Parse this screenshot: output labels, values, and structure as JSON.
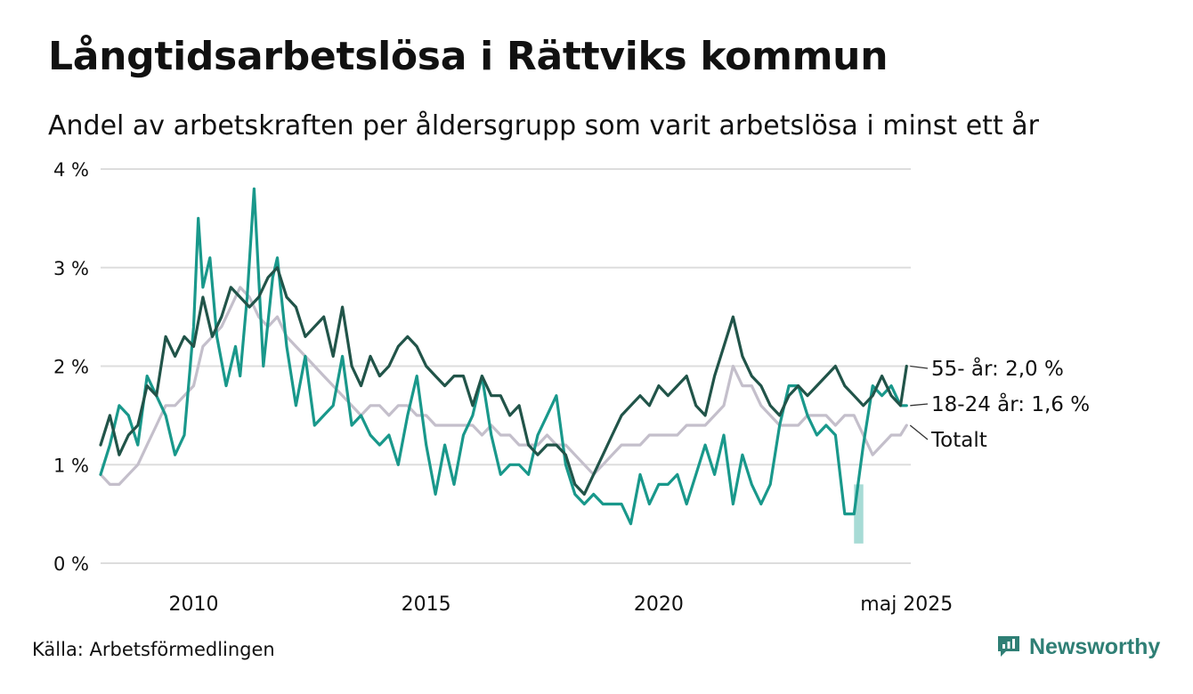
{
  "header": {
    "title": "Långtidsarbetslösa i Rättviks kommun",
    "subtitle": "Andel av arbetskraften per åldersgrupp som varit arbetslösa i minst ett år"
  },
  "footer": {
    "source": "Källa: Arbetsförmedlingen",
    "brand": "Newsworthy",
    "brand_color": "#2f7f75"
  },
  "chart_data": {
    "type": "line",
    "xlim": [
      2008.0,
      2025.42
    ],
    "ylim": [
      0,
      4
    ],
    "y_ticks": [
      {
        "value": 0,
        "label": "0 %"
      },
      {
        "value": 1,
        "label": "1 %"
      },
      {
        "value": 2,
        "label": "2 %"
      },
      {
        "value": 3,
        "label": "3 %"
      },
      {
        "value": 4,
        "label": "4 %"
      }
    ],
    "x_ticks": [
      {
        "value": 2010,
        "label": "2010"
      },
      {
        "value": 2015,
        "label": "2015"
      },
      {
        "value": 2020,
        "label": "2020"
      },
      {
        "value": 2025.33,
        "label": "maj 2025"
      }
    ],
    "grid": true,
    "legend": "end-labels",
    "series": [
      {
        "name": "Totalt",
        "end_label": "Totalt",
        "color": "#c4bfcb",
        "x": [
          2008.0,
          2008.2,
          2008.4,
          2008.6,
          2008.8,
          2009.0,
          2009.2,
          2009.4,
          2009.6,
          2009.8,
          2010.0,
          2010.2,
          2010.4,
          2010.6,
          2010.8,
          2011.0,
          2011.2,
          2011.4,
          2011.6,
          2011.8,
          2012.0,
          2012.2,
          2012.4,
          2012.6,
          2012.8,
          2013.0,
          2013.2,
          2013.4,
          2013.6,
          2013.8,
          2014.0,
          2014.2,
          2014.4,
          2014.6,
          2014.8,
          2015.0,
          2015.2,
          2015.4,
          2015.6,
          2015.8,
          2016.0,
          2016.2,
          2016.4,
          2016.6,
          2016.8,
          2017.0,
          2017.2,
          2017.4,
          2017.6,
          2017.8,
          2018.0,
          2018.2,
          2018.4,
          2018.6,
          2018.8,
          2019.0,
          2019.2,
          2019.4,
          2019.6,
          2019.8,
          2020.0,
          2020.2,
          2020.4,
          2020.6,
          2020.8,
          2021.0,
          2021.2,
          2021.4,
          2021.6,
          2021.8,
          2022.0,
          2022.2,
          2022.4,
          2022.6,
          2022.8,
          2023.0,
          2023.2,
          2023.4,
          2023.6,
          2023.8,
          2024.0,
          2024.2,
          2024.4,
          2024.6,
          2024.8,
          2025.0,
          2025.2,
          2025.33
        ],
        "y": [
          0.9,
          0.8,
          0.8,
          0.9,
          1.0,
          1.2,
          1.4,
          1.6,
          1.6,
          1.7,
          1.8,
          2.2,
          2.3,
          2.4,
          2.6,
          2.8,
          2.7,
          2.5,
          2.4,
          2.5,
          2.3,
          2.2,
          2.1,
          2.0,
          1.9,
          1.8,
          1.7,
          1.6,
          1.5,
          1.6,
          1.6,
          1.5,
          1.6,
          1.6,
          1.5,
          1.5,
          1.4,
          1.4,
          1.4,
          1.4,
          1.4,
          1.3,
          1.4,
          1.3,
          1.3,
          1.2,
          1.2,
          1.2,
          1.3,
          1.2,
          1.2,
          1.1,
          1.0,
          0.9,
          1.0,
          1.1,
          1.2,
          1.2,
          1.2,
          1.3,
          1.3,
          1.3,
          1.3,
          1.4,
          1.4,
          1.4,
          1.5,
          1.6,
          2.0,
          1.8,
          1.8,
          1.6,
          1.5,
          1.4,
          1.4,
          1.4,
          1.5,
          1.5,
          1.5,
          1.4,
          1.5,
          1.5,
          1.3,
          1.1,
          1.2,
          1.3,
          1.3,
          1.4
        ]
      },
      {
        "name": "18-24 år",
        "end_label": "18-24 år: 1,6 %",
        "color": "#19988b",
        "x": [
          2008.0,
          2008.2,
          2008.4,
          2008.6,
          2008.8,
          2009.0,
          2009.2,
          2009.4,
          2009.6,
          2009.8,
          2010.0,
          2010.1,
          2010.2,
          2010.35,
          2010.5,
          2010.7,
          2010.9,
          2011.0,
          2011.15,
          2011.3,
          2011.5,
          2011.7,
          2011.8,
          2012.0,
          2012.2,
          2012.4,
          2012.6,
          2012.8,
          2013.0,
          2013.2,
          2013.4,
          2013.6,
          2013.8,
          2014.0,
          2014.2,
          2014.4,
          2014.6,
          2014.8,
          2015.0,
          2015.2,
          2015.4,
          2015.6,
          2015.8,
          2016.0,
          2016.2,
          2016.4,
          2016.6,
          2016.8,
          2017.0,
          2017.2,
          2017.4,
          2017.6,
          2017.8,
          2018.0,
          2018.2,
          2018.4,
          2018.6,
          2018.8,
          2019.0,
          2019.2,
          2019.4,
          2019.6,
          2019.8,
          2020.0,
          2020.2,
          2020.4,
          2020.6,
          2020.8,
          2021.0,
          2021.2,
          2021.4,
          2021.6,
          2021.8,
          2022.0,
          2022.2,
          2022.4,
          2022.6,
          2022.8,
          2023.0,
          2023.2,
          2023.4,
          2023.6,
          2023.8,
          2024.0,
          2024.2,
          2024.4,
          2024.6,
          2024.8,
          2025.0,
          2025.2,
          2025.33
        ],
        "y": [
          0.9,
          1.2,
          1.6,
          1.5,
          1.2,
          1.9,
          1.7,
          1.5,
          1.1,
          1.3,
          2.4,
          3.5,
          2.8,
          3.1,
          2.3,
          1.8,
          2.2,
          1.9,
          2.7,
          3.8,
          2.0,
          2.9,
          3.1,
          2.2,
          1.6,
          2.1,
          1.4,
          1.5,
          1.6,
          2.1,
          1.4,
          1.5,
          1.3,
          1.2,
          1.3,
          1.0,
          1.5,
          1.9,
          1.2,
          0.7,
          1.2,
          0.8,
          1.3,
          1.5,
          1.9,
          1.3,
          0.9,
          1.0,
          1.0,
          0.9,
          1.3,
          1.5,
          1.7,
          1.0,
          0.7,
          0.6,
          0.7,
          0.6,
          0.6,
          0.6,
          0.4,
          0.9,
          0.6,
          0.8,
          0.8,
          0.9,
          0.6,
          0.9,
          1.2,
          0.9,
          1.3,
          0.6,
          1.1,
          0.8,
          0.6,
          0.8,
          1.4,
          1.8,
          1.8,
          1.5,
          1.3,
          1.4,
          1.3,
          0.5,
          0.5,
          1.2,
          1.8,
          1.7,
          1.8,
          1.6,
          1.6
        ]
      },
      {
        "name": "55- år",
        "end_label": "55- år: 2,0 %",
        "color": "#215449",
        "x": [
          2008.0,
          2008.2,
          2008.4,
          2008.6,
          2008.8,
          2009.0,
          2009.2,
          2009.4,
          2009.6,
          2009.8,
          2010.0,
          2010.2,
          2010.4,
          2010.6,
          2010.8,
          2011.0,
          2011.2,
          2011.4,
          2011.6,
          2011.8,
          2012.0,
          2012.2,
          2012.4,
          2012.6,
          2012.8,
          2013.0,
          2013.2,
          2013.4,
          2013.6,
          2013.8,
          2014.0,
          2014.2,
          2014.4,
          2014.6,
          2014.8,
          2015.0,
          2015.2,
          2015.4,
          2015.6,
          2015.8,
          2016.0,
          2016.2,
          2016.4,
          2016.6,
          2016.8,
          2017.0,
          2017.2,
          2017.4,
          2017.6,
          2017.8,
          2018.0,
          2018.2,
          2018.4,
          2018.6,
          2018.8,
          2019.0,
          2019.2,
          2019.4,
          2019.6,
          2019.8,
          2020.0,
          2020.2,
          2020.4,
          2020.6,
          2020.8,
          2021.0,
          2021.2,
          2021.4,
          2021.6,
          2021.8,
          2022.0,
          2022.2,
          2022.4,
          2022.6,
          2022.8,
          2023.0,
          2023.2,
          2023.4,
          2023.6,
          2023.8,
          2024.0,
          2024.2,
          2024.4,
          2024.6,
          2024.8,
          2025.0,
          2025.2,
          2025.33
        ],
        "y": [
          1.2,
          1.5,
          1.1,
          1.3,
          1.4,
          1.8,
          1.7,
          2.3,
          2.1,
          2.3,
          2.2,
          2.7,
          2.3,
          2.5,
          2.8,
          2.7,
          2.6,
          2.7,
          2.9,
          3.0,
          2.7,
          2.6,
          2.3,
          2.4,
          2.5,
          2.1,
          2.6,
          2.0,
          1.8,
          2.1,
          1.9,
          2.0,
          2.2,
          2.3,
          2.2,
          2.0,
          1.9,
          1.8,
          1.9,
          1.9,
          1.6,
          1.9,
          1.7,
          1.7,
          1.5,
          1.6,
          1.2,
          1.1,
          1.2,
          1.2,
          1.1,
          0.8,
          0.7,
          0.9,
          1.1,
          1.3,
          1.5,
          1.6,
          1.7,
          1.6,
          1.8,
          1.7,
          1.8,
          1.9,
          1.6,
          1.5,
          1.9,
          2.2,
          2.5,
          2.1,
          1.9,
          1.8,
          1.6,
          1.5,
          1.7,
          1.8,
          1.7,
          1.8,
          1.9,
          2.0,
          1.8,
          1.7,
          1.6,
          1.7,
          1.9,
          1.7,
          1.6,
          2.0
        ]
      }
    ],
    "uncertainty_band": {
      "series": "18-24 år",
      "color": "#a7dbd5",
      "x": [
        2024.2,
        2024.4
      ],
      "low": [
        0.2,
        0.2
      ],
      "high": [
        0.8,
        0.8
      ]
    }
  }
}
